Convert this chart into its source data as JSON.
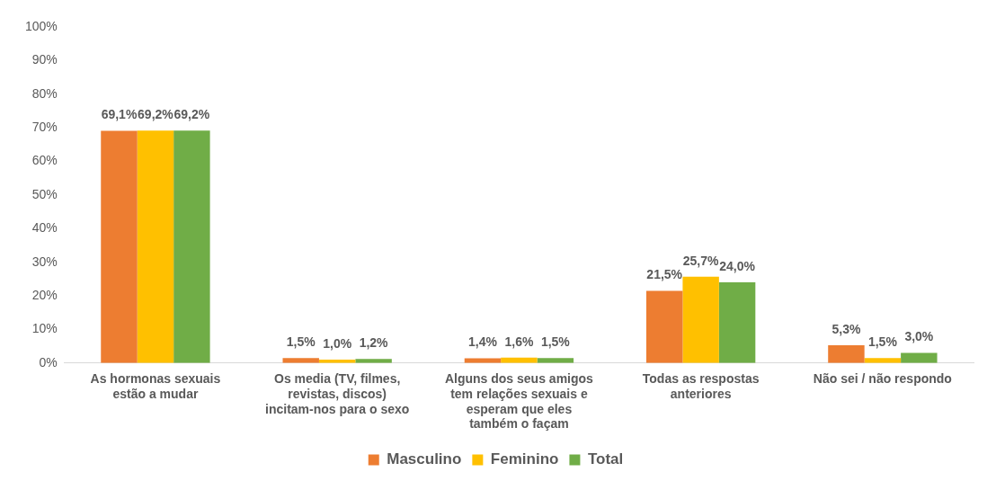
{
  "chart_data": {
    "type": "bar",
    "categories": [
      "As hormonas sexuais estão a mudar",
      "Os media (TV, filmes, revistas, discos) incitam-nos para o sexo",
      "Alguns dos seus amigos tem relações sexuais e esperam que eles também o façam",
      "Todas as respostas anteriores",
      "Não sei / não respondo"
    ],
    "series": [
      {
        "name": "Masculino",
        "color": "#ed7d31",
        "values": [
          69.1,
          1.5,
          1.4,
          21.5,
          5.3
        ],
        "value_labels": [
          "69,1%",
          "1,5%",
          "1,4%",
          "21,5%",
          "5,3%"
        ]
      },
      {
        "name": "Feminino",
        "color": "#ffc000",
        "values": [
          69.2,
          1.0,
          1.6,
          25.7,
          1.5
        ],
        "value_labels": [
          "69,2%",
          "1,0%",
          "1,6%",
          "25,7%",
          "1,5%"
        ]
      },
      {
        "name": "Total",
        "color": "#70ad47",
        "values": [
          69.2,
          1.2,
          1.5,
          24.0,
          3.0
        ],
        "value_labels": [
          "69,2%",
          "1,2%",
          "1,5%",
          "24,0%",
          "3,0%"
        ]
      }
    ],
    "ylim": [
      0,
      100
    ],
    "yticks": [
      {
        "value": 0,
        "label": "0%"
      },
      {
        "value": 10,
        "label": "10%"
      },
      {
        "value": 20,
        "label": "20%"
      },
      {
        "value": 30,
        "label": "30%"
      },
      {
        "value": 40,
        "label": "40%"
      },
      {
        "value": 50,
        "label": "50%"
      },
      {
        "value": 60,
        "label": "60%"
      },
      {
        "value": 70,
        "label": "70%"
      },
      {
        "value": 80,
        "label": "80%"
      },
      {
        "value": 90,
        "label": "90%"
      },
      {
        "value": 100,
        "label": "100%"
      }
    ],
    "grid": false,
    "legend": "bottom"
  }
}
